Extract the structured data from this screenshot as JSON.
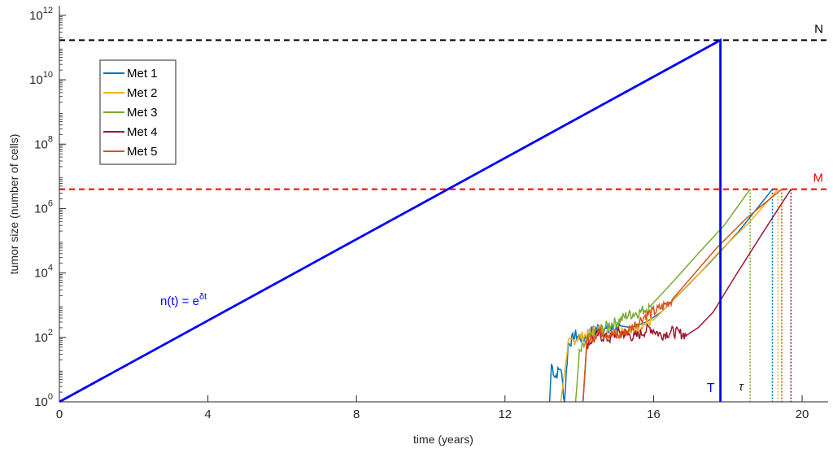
{
  "chart_data": {
    "type": "line",
    "xlabel": "time (years)",
    "ylabel": "tumor size (number of cells)",
    "xlim": [
      0,
      20.7
    ],
    "ylim_log10": [
      0,
      12.3
    ],
    "y_scale": "log",
    "grid": false,
    "legend_position": "top-left",
    "x_ticks": [
      {
        "value": 0,
        "label": "0"
      },
      {
        "value": 4,
        "label": "4"
      },
      {
        "value": 8,
        "label": "8"
      },
      {
        "value": 12,
        "label": "12"
      },
      {
        "value": 16,
        "label": "16"
      },
      {
        "value": 20,
        "label": "20"
      }
    ],
    "y_ticks": [
      {
        "exp": 0,
        "base": "10",
        "sup": "0"
      },
      {
        "exp": 2,
        "base": "10",
        "sup": "2"
      },
      {
        "exp": 4,
        "base": "10",
        "sup": "4"
      },
      {
        "exp": 6,
        "base": "10",
        "sup": "6"
      },
      {
        "exp": 8,
        "base": "10",
        "sup": "8"
      },
      {
        "exp": 10,
        "base": "10",
        "sup": "10"
      },
      {
        "exp": 12,
        "base": "10",
        "sup": "12"
      }
    ],
    "thresholds": [
      {
        "label": "N",
        "value": 170000000000,
        "color": "#000000"
      },
      {
        "label": "M",
        "value": 4000000,
        "color": "#ff0000"
      }
    ],
    "primary": {
      "label_base": "n(t) = e",
      "label_sup": "δt",
      "color": "#0000ff",
      "T_label": "T",
      "T": 17.8,
      "points": [
        [
          0,
          1
        ],
        [
          17.8,
          170000000000
        ],
        [
          17.8,
          1
        ]
      ]
    },
    "tau_label": "τ",
    "series": [
      {
        "name": "Met 1",
        "color": "#0072bd",
        "t_start": 13.2,
        "detection_time": 19.2,
        "points": [
          [
            13.2,
            1
          ],
          [
            13.25,
            15
          ],
          [
            13.35,
            6
          ],
          [
            13.5,
            12
          ],
          [
            13.6,
            1
          ],
          [
            13.7,
            60
          ],
          [
            13.9,
            120
          ],
          [
            14.1,
            90
          ],
          [
            14.3,
            150
          ],
          [
            14.5,
            200
          ],
          [
            14.8,
            160
          ],
          [
            15.1,
            230
          ],
          [
            15.4,
            200
          ],
          [
            15.8,
            300
          ],
          [
            16.2,
            600
          ],
          [
            16.8,
            3000
          ],
          [
            17.5,
            20000
          ],
          [
            18.3,
            200000
          ],
          [
            19.2,
            4000000
          ]
        ]
      },
      {
        "name": "Met 2",
        "color": "#edb120",
        "t_start": 13.5,
        "detection_time": 19.35,
        "points": [
          [
            13.5,
            1
          ],
          [
            13.7,
            60
          ],
          [
            13.9,
            90
          ],
          [
            14.2,
            120
          ],
          [
            14.5,
            180
          ],
          [
            14.8,
            150
          ],
          [
            15.1,
            200
          ],
          [
            15.4,
            150
          ],
          [
            15.7,
            250
          ],
          [
            16.0,
            350
          ],
          [
            16.4,
            1000
          ],
          [
            17.0,
            5000
          ],
          [
            17.8,
            50000
          ],
          [
            18.6,
            400000
          ],
          [
            19.35,
            4000000
          ]
        ]
      },
      {
        "name": "Met 3",
        "color": "#77ac30",
        "t_start": 13.9,
        "detection_time": 18.6,
        "points": [
          [
            13.9,
            1
          ],
          [
            14.0,
            30
          ],
          [
            14.2,
            80
          ],
          [
            14.5,
            150
          ],
          [
            14.8,
            250
          ],
          [
            15.0,
            300
          ],
          [
            15.3,
            500
          ],
          [
            15.6,
            600
          ],
          [
            15.9,
            900
          ],
          [
            16.0,
            1200
          ],
          [
            16.5,
            5000
          ],
          [
            17.2,
            40000
          ],
          [
            17.9,
            300000
          ],
          [
            18.6,
            4000000
          ]
        ]
      },
      {
        "name": "Met 4",
        "color": "#a2142f",
        "t_start": 14.1,
        "detection_time": 19.7,
        "points": [
          [
            14.1,
            1
          ],
          [
            14.2,
            60
          ],
          [
            14.5,
            120
          ],
          [
            14.8,
            90
          ],
          [
            15.1,
            150
          ],
          [
            15.5,
            100
          ],
          [
            15.9,
            200
          ],
          [
            16.2,
            120
          ],
          [
            16.5,
            150
          ],
          [
            16.9,
            120
          ],
          [
            17.2,
            200
          ],
          [
            17.6,
            600
          ],
          [
            18.2,
            8000
          ],
          [
            18.9,
            150000
          ],
          [
            19.7,
            4000000
          ]
        ]
      },
      {
        "name": "Met 5",
        "color": "#d95319",
        "t_start": 14.1,
        "detection_time": 19.45,
        "points": [
          [
            14.1,
            1
          ],
          [
            14.2,
            70
          ],
          [
            14.5,
            150
          ],
          [
            14.8,
            130
          ],
          [
            15.1,
            110
          ],
          [
            15.4,
            200
          ],
          [
            15.8,
            500
          ],
          [
            16.1,
            700
          ],
          [
            16.5,
            1500
          ],
          [
            17.0,
            7000
          ],
          [
            17.7,
            60000
          ],
          [
            18.5,
            500000
          ],
          [
            19.45,
            4000000
          ]
        ]
      }
    ]
  }
}
